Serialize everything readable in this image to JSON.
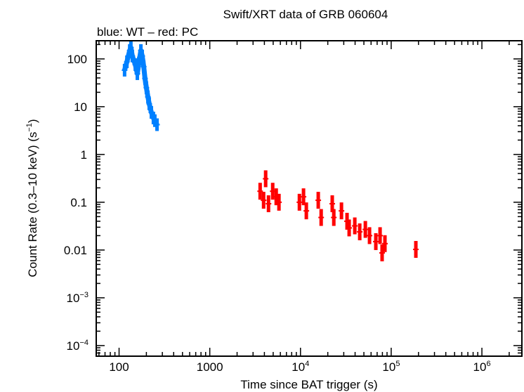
{
  "chart_data": {
    "type": "scatter",
    "title": "Swift/XRT data of GRB 060604",
    "subtitle": "blue: WT – red: PC",
    "xlabel": "Time since BAT trigger (s)",
    "ylabel_main": "Count Rate (0.3–10 keV) (s",
    "ylabel_sup": "−1",
    "ylabel_end": ")",
    "xscale": "log",
    "yscale": "log",
    "xlim": [
      56,
      2760000
    ],
    "ylim": [
      6e-05,
      240
    ],
    "grid": false,
    "x_ticks": [
      {
        "value": 100,
        "base": "100",
        "exp": ""
      },
      {
        "value": 1000,
        "base": "1000",
        "exp": ""
      },
      {
        "value": 10000,
        "base": "10",
        "exp": "4"
      },
      {
        "value": 100000,
        "base": "10",
        "exp": "5"
      },
      {
        "value": 1000000,
        "base": "10",
        "exp": "6"
      }
    ],
    "y_ticks": [
      {
        "value": 100,
        "base": "100",
        "exp": ""
      },
      {
        "value": 10,
        "base": "10",
        "exp": ""
      },
      {
        "value": 1,
        "base": "1",
        "exp": ""
      },
      {
        "value": 0.1,
        "base": "0.1",
        "exp": ""
      },
      {
        "value": 0.01,
        "base": "0.01",
        "exp": ""
      },
      {
        "value": 0.001,
        "base": "10",
        "exp": "−3"
      },
      {
        "value": 0.0001,
        "base": "10",
        "exp": "−4"
      }
    ],
    "series": [
      {
        "name": "WT",
        "color": "#0080ff",
        "x": [
          115,
          122,
          131,
          135,
          140,
          151,
          159,
          165,
          174,
          180,
          187,
          193,
          200,
          208,
          215,
          227,
          239,
          248,
          262
        ],
        "y": [
          58,
          87,
          150,
          172,
          115,
          76,
          49,
          82,
          150,
          115,
          69,
          39,
          25,
          16,
          11.5,
          7.6,
          5.8,
          5.1,
          4.2
        ]
      },
      {
        "name": "PC",
        "color": "#ff0000",
        "x": [
          3590,
          3920,
          4130,
          4440,
          4940,
          5400,
          5790,
          9730,
          10800,
          11600,
          15700,
          16900,
          22400,
          23300,
          28300,
          32600,
          34400,
          39700,
          45000,
          51900,
          57700,
          67700,
          75400,
          79400,
          85300,
          187000
        ],
        "y": [
          0.17,
          0.11,
          0.31,
          0.093,
          0.17,
          0.13,
          0.1,
          0.1,
          0.13,
          0.066,
          0.11,
          0.048,
          0.093,
          0.048,
          0.066,
          0.04,
          0.029,
          0.032,
          0.024,
          0.027,
          0.02,
          0.015,
          0.02,
          0.0087,
          0.0136,
          0.0103
        ]
      }
    ]
  }
}
